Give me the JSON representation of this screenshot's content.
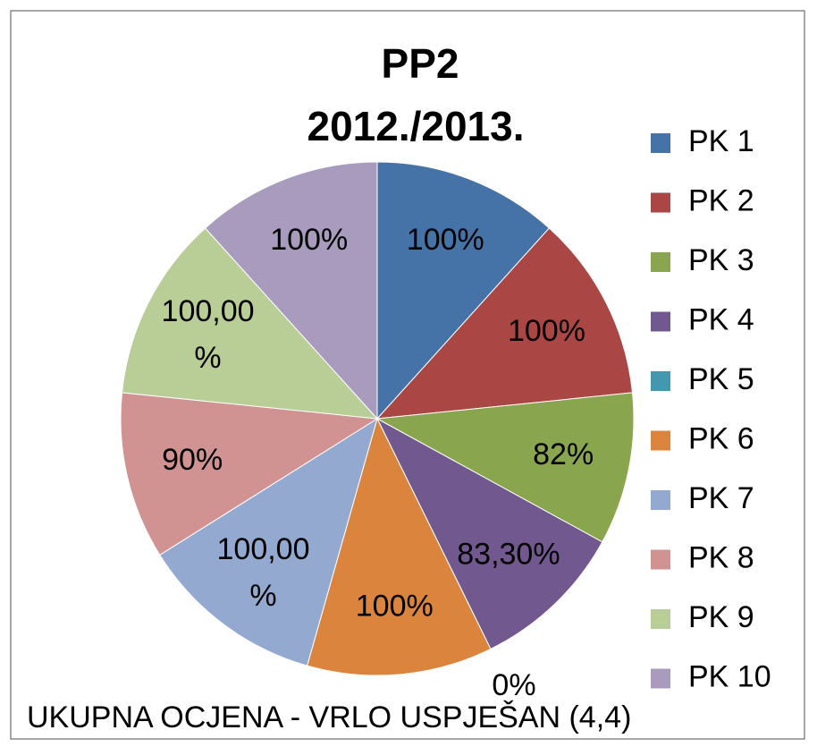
{
  "chart_data": {
    "type": "pie",
    "title": "PP2",
    "subtitle": "2012./2013.",
    "categories": [
      "PK 1",
      "PK 2",
      "PK 3",
      "PK 4",
      "PK 5",
      "PK 6",
      "PK 7",
      "PK 8",
      "PK 9",
      "PK 10"
    ],
    "values": [
      100,
      100,
      82,
      83.3,
      0,
      100,
      100,
      90,
      100,
      100
    ],
    "value_labels": [
      "100%",
      "100%",
      "82%",
      "83,30%",
      "0%",
      "100%",
      "100,00%",
      "90%",
      "100,00%",
      "100%"
    ],
    "colors": [
      "#4572a7",
      "#aa4643",
      "#89a54e",
      "#71588f",
      "#4198af",
      "#db843d",
      "#93a9cf",
      "#d19392",
      "#b9cd96",
      "#a99bbd"
    ],
    "legend": "right",
    "annotation": "UKUPNA OCJENA  - VRLO USPJEŠAN (4,4)"
  }
}
